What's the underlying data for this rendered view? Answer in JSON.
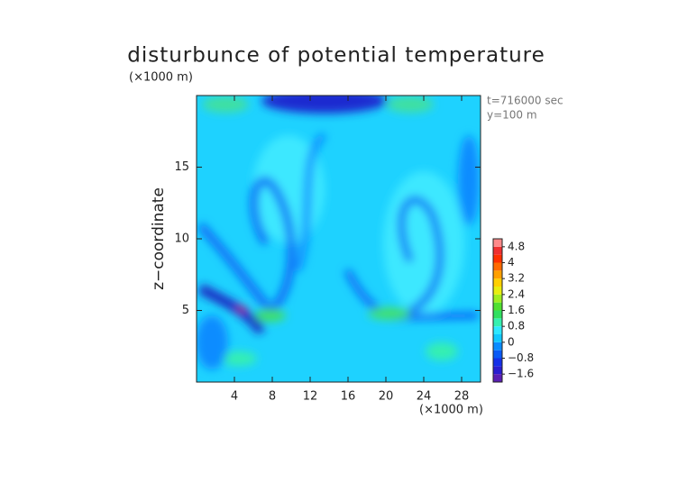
{
  "chart_data": {
    "type": "contour",
    "title": "disturbunce of potential temperature",
    "ylabel": "z−coordinate",
    "yunit": "(×1000 m)",
    "xunit": "(×1000 m)",
    "annotations": [
      "t=716000 sec",
      "y=100 m"
    ],
    "xlim": [
      0,
      30
    ],
    "xticks": [
      4,
      8,
      12,
      16,
      20,
      24,
      28
    ],
    "ylim": [
      0,
      20
    ],
    "yticks": [
      5,
      10,
      15
    ],
    "colorbar": {
      "levels": [
        -2.0,
        -1.6,
        -1.2,
        -0.8,
        -0.4,
        0,
        0.4,
        0.8,
        1.2,
        1.6,
        2.0,
        2.4,
        2.8,
        3.2,
        3.6,
        4.0,
        4.4,
        4.8,
        5.2
      ],
      "colors": [
        "#5a1fb4",
        "#2a1ed0",
        "#1530e8",
        "#0a5af5",
        "#0a8cff",
        "#12c8ff",
        "#2ee8ff",
        "#35f0b0",
        "#30e060",
        "#50e030",
        "#a0ee20",
        "#e8ee10",
        "#ffd000",
        "#ffa000",
        "#ff6a00",
        "#ff3000",
        "#f03030",
        "#ff8a8a"
      ],
      "ticks": [
        {
          "value": -1.6,
          "label": "−1.6"
        },
        {
          "value": -0.8,
          "label": "−0.8"
        },
        0,
        0.8,
        1.6,
        2.4,
        3.2,
        4,
        4.8
      ]
    }
  }
}
